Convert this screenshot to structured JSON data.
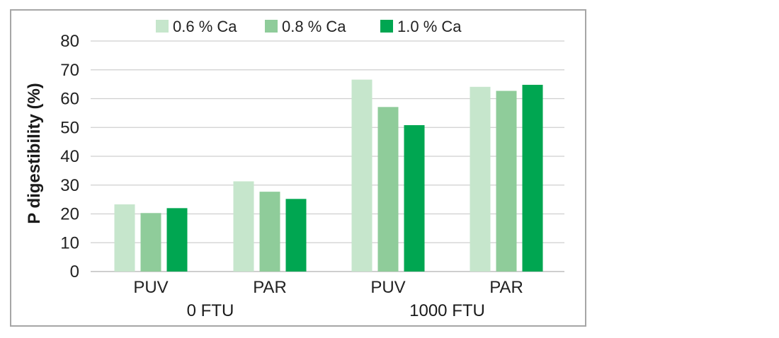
{
  "chart_data": {
    "type": "bar",
    "title": "",
    "ylabel": "P digestibility (%)",
    "xlabel": "",
    "ylim": [
      0,
      80
    ],
    "yticks": [
      0,
      10,
      20,
      30,
      40,
      50,
      60,
      70,
      80
    ],
    "grid": true,
    "legend_position": "top",
    "categories": [
      "PUV",
      "PAR",
      "PUV",
      "PAR"
    ],
    "groups": [
      {
        "label": "0 FTU",
        "categories": [
          0,
          1
        ]
      },
      {
        "label": "1000 FTU",
        "categories": [
          2,
          3
        ]
      }
    ],
    "series": [
      {
        "name": "0.6 % Ca",
        "color": "#c6e6cc",
        "values": [
          23.3,
          31.3,
          66.6,
          64.1
        ]
      },
      {
        "name": "0.8 % Ca",
        "color": "#8fcc9a",
        "values": [
          20.3,
          27.7,
          57.1,
          62.7
        ]
      },
      {
        "name": "1.0 % Ca",
        "color": "#00a651",
        "values": [
          22.0,
          25.2,
          50.8,
          64.8
        ]
      }
    ]
  }
}
